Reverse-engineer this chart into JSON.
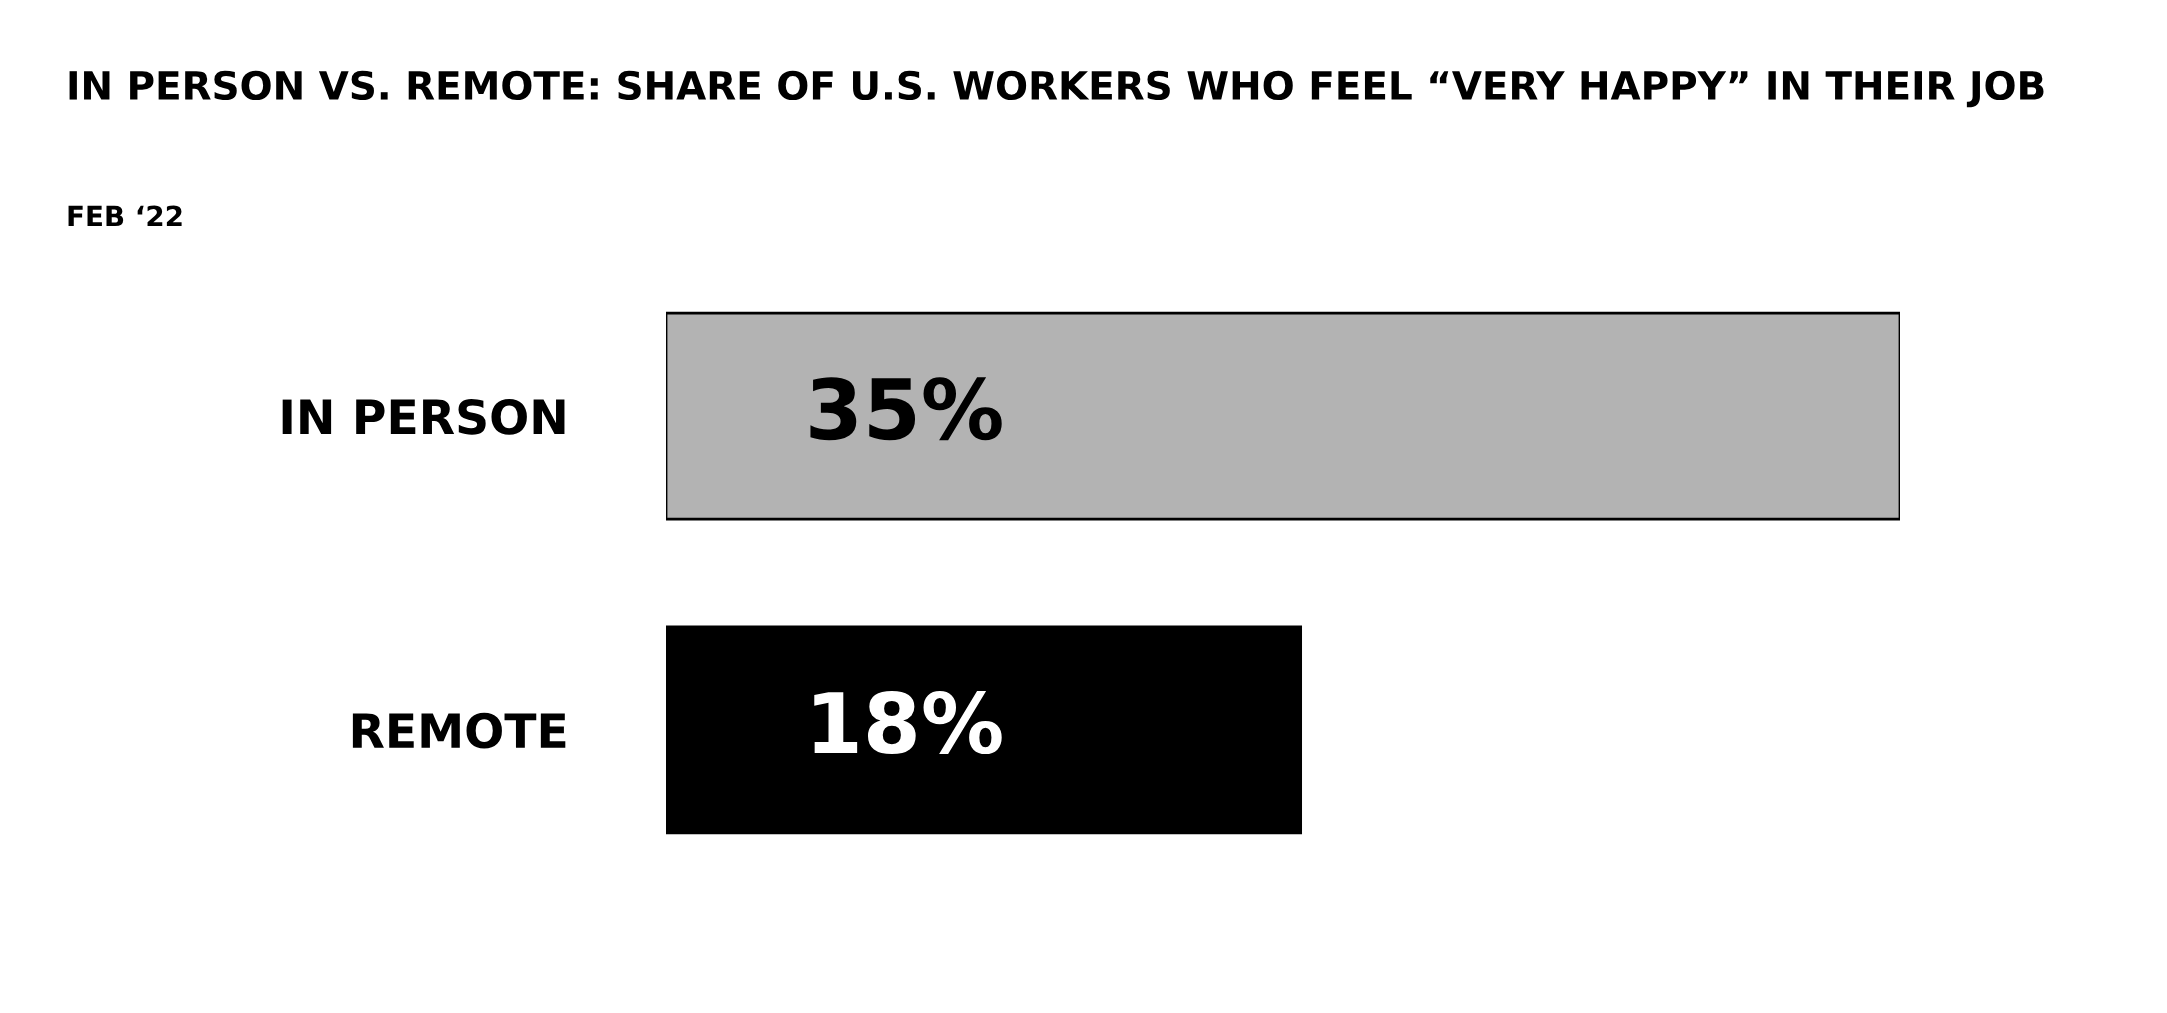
{
  "chart_data": {
    "type": "bar",
    "orientation": "horizontal",
    "title": "IN PERSON VS. REMOTE: SHARE OF U.S. WORKERS WHO FEEL “VERY HAPPY” IN THEIR JOB",
    "subtitle": "FEB ‘22",
    "categories": [
      "IN PERSON",
      "REMOTE"
    ],
    "values": [
      35,
      18
    ],
    "colors": [
      "#b3b3b3",
      "#000000"
    ],
    "value_labels": [
      "35%",
      "18%"
    ],
    "xlim": [
      0,
      35
    ],
    "tick_labels": "y"
  }
}
